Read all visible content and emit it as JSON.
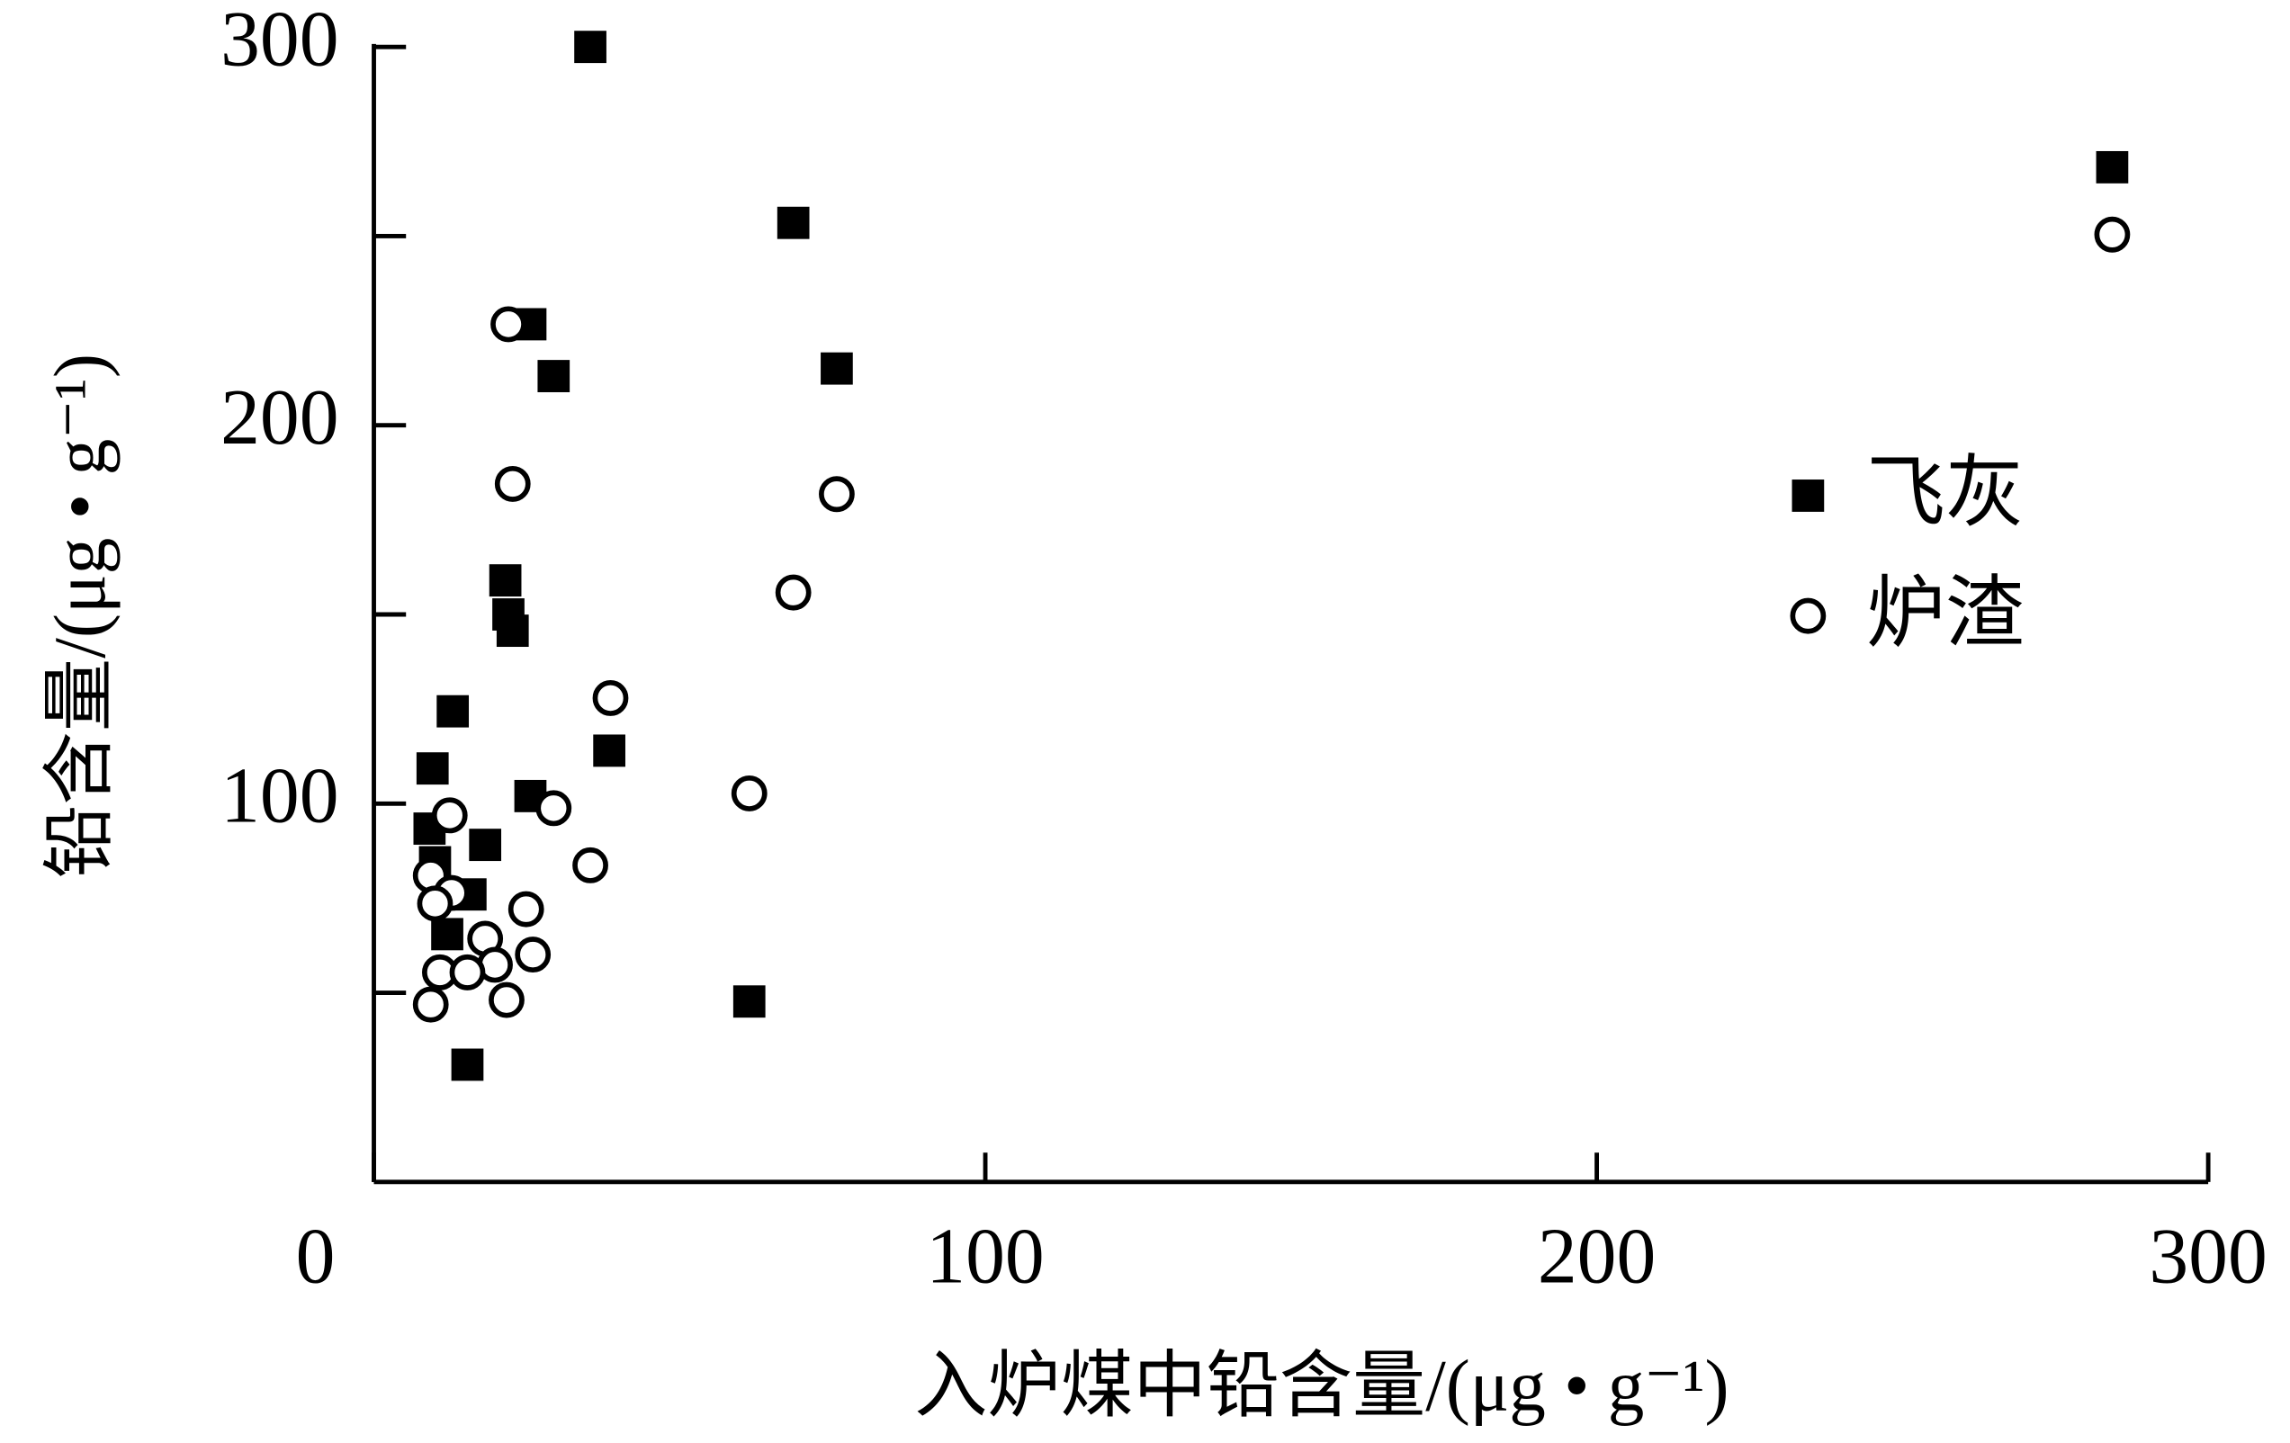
{
  "chart_data": {
    "type": "scatter",
    "x_label": "入炉煤中铅含量/(μg • g⁻¹)",
    "y_label": "铅含量/(μg • g⁻¹)",
    "xlim": [
      0,
      300
    ],
    "ylim": [
      0,
      300
    ],
    "xticks": [
      0,
      100,
      200,
      300
    ],
    "yticks": [
      100,
      200,
      300
    ],
    "yminorticks": [
      50,
      150,
      250
    ],
    "legend": "right",
    "series": [
      {
        "name": "飞灰",
        "color": "#000000",
        "marker": "square",
        "x": [
          35.4,
          68.6,
          75.7,
          25.6,
          29.4,
          21.5,
          22.0,
          22.7,
          12.9,
          9.6,
          38.5,
          25.6,
          9.1,
          18.2,
          10.0,
          15.8,
          12.0,
          15.3,
          61.4,
          284.3
        ],
        "values": [
          300,
          253.5,
          215,
          226.7,
          213,
          159,
          150,
          145.7,
          124.4,
          109.3,
          114,
          102,
          93.4,
          89.1,
          84.5,
          76,
          65.5,
          31,
          47.7,
          268.2
        ]
      },
      {
        "name": "炉渣",
        "color": "#000000",
        "marker": "circle",
        "x": [
          22.0,
          22.7,
          75.7,
          68.6,
          38.7,
          61.4,
          29.4,
          12.4,
          35.4,
          9.3,
          12.7,
          10.0,
          24.9,
          18.2,
          26.0,
          19.8,
          10.8,
          15.3,
          21.7,
          9.3,
          284.3
        ],
        "values": [
          226.7,
          184.5,
          181.8,
          155.8,
          127.9,
          102.7,
          98.8,
          96.9,
          83.7,
          81,
          76.4,
          73.6,
          72.1,
          64.3,
          60.1,
          57.4,
          55.4,
          55.4,
          48.1,
          46.9,
          250.4
        ]
      }
    ]
  }
}
